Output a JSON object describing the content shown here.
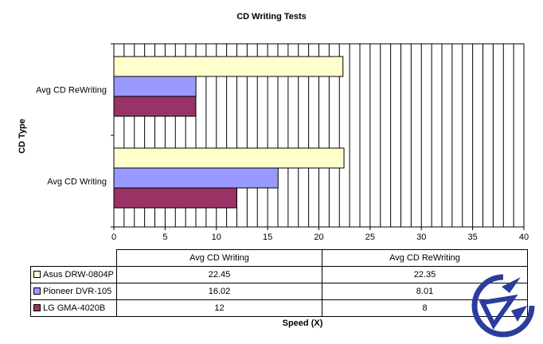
{
  "chart_data": {
    "type": "bar",
    "orientation": "horizontal",
    "title": "CD Writing Tests",
    "xlabel": "Speed (X)",
    "ylabel": "CD Type",
    "xlim": [
      0,
      40
    ],
    "xticks": [
      0,
      5,
      10,
      15,
      20,
      25,
      30,
      35,
      40
    ],
    "grid": "vertical lines every 1 unit",
    "categories": [
      "Avg CD Writing",
      "Avg CD ReWriting"
    ],
    "series": [
      {
        "name": "Asus DRW-0804P",
        "values": [
          22.45,
          22.35
        ],
        "color": "#FFFFCC"
      },
      {
        "name": "Pioneer DVR-105",
        "values": [
          16.02,
          8.01
        ],
        "color": "#9999FF"
      },
      {
        "name": "LG GMA-4020B",
        "values": [
          12,
          8
        ],
        "color": "#993366"
      }
    ],
    "data_table_values": [
      [
        "22.45",
        "22.35"
      ],
      [
        "16.02",
        "8.01"
      ],
      [
        "12",
        "8"
      ]
    ]
  }
}
